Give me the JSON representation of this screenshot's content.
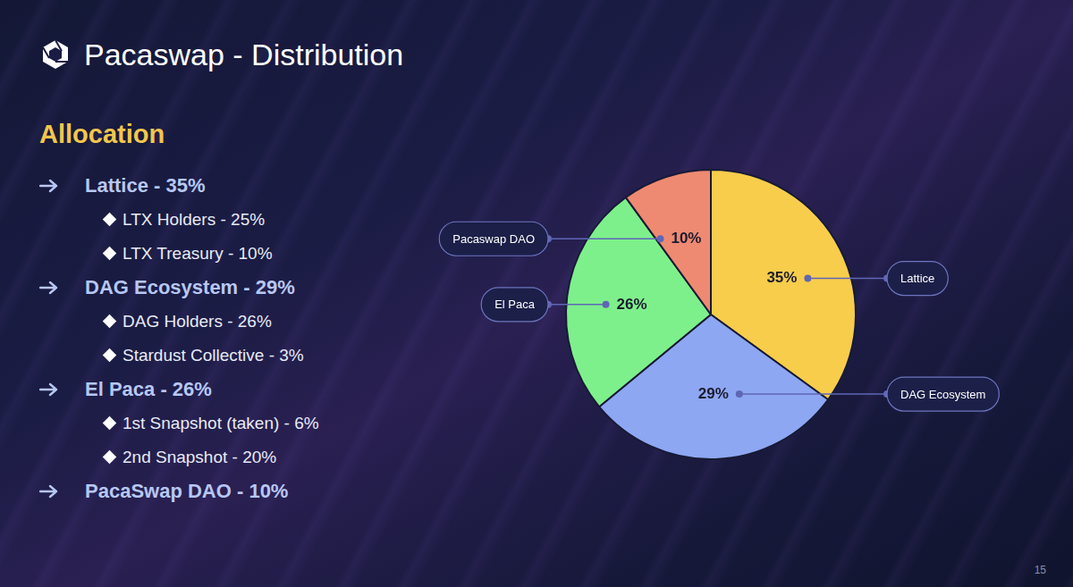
{
  "header": {
    "title": "Pacaswap - Distribution",
    "page_number": 15
  },
  "allocation": {
    "heading": "Allocation",
    "items": [
      {
        "label": "Lattice - 35%",
        "items": [
          "LTX Holders - 25%",
          "LTX Treasury - 10%"
        ]
      },
      {
        "label": "DAG Ecosystem - 29%",
        "items": [
          "DAG Holders - 26%",
          "Stardust Collective - 3%"
        ]
      },
      {
        "label": "El Paca - 26%",
        "items": [
          "1st Snapshot (taken) - 6%",
          "2nd Snapshot - 20%"
        ]
      },
      {
        "label": "PacaSwap DAO - 10%"
      }
    ]
  },
  "chart_data": {
    "type": "pie",
    "categories": [
      "Lattice",
      "DAG Ecosystem",
      "El Paca",
      "Pacaswap DAO"
    ],
    "values": [
      35,
      29,
      26,
      10
    ],
    "value_labels": [
      "35%",
      "29%",
      "26%",
      "10%"
    ],
    "colors": [
      "#f8cd4b",
      "#8ea7f3",
      "#7ef08b",
      "#ee8a72"
    ],
    "data_labels": true
  }
}
